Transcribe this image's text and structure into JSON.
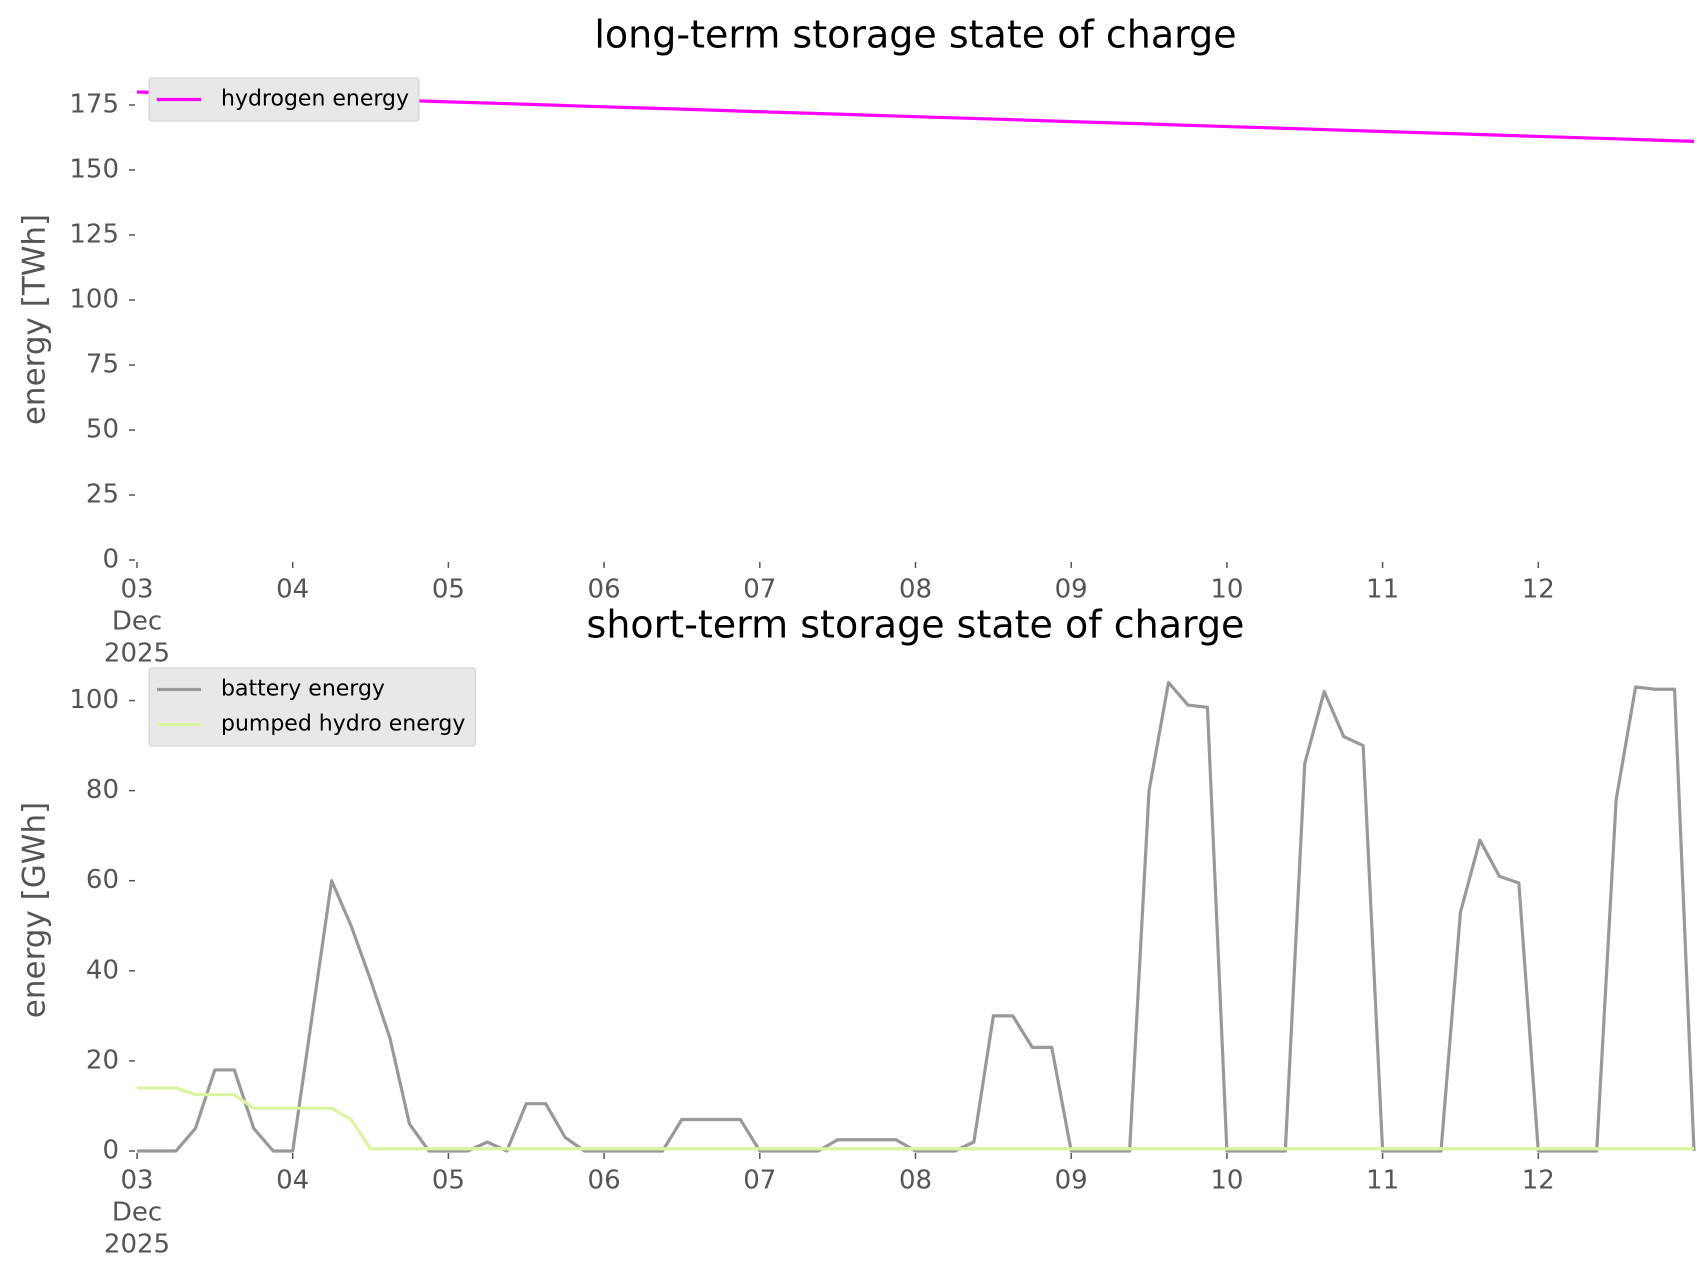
{
  "chart_data": [
    {
      "type": "line",
      "title": "long-term storage state of charge",
      "ylabel": "energy [TWh]",
      "x": [
        3,
        3.5,
        4,
        4.5,
        5,
        5.5,
        6,
        6.5,
        7,
        7.5,
        8,
        8.5,
        9,
        9.5,
        10,
        10.5,
        11,
        11.5,
        12,
        12.5,
        13
      ],
      "series": [
        {
          "name": "hydrogen energy",
          "color": "#ff00ff",
          "values": [
            180,
            179.1,
            178.1,
            177.2,
            176.2,
            175.3,
            174.3,
            173.4,
            172.4,
            171.5,
            170.5,
            169.6,
            168.6,
            167.7,
            166.7,
            165.8,
            164.8,
            163.9,
            162.9,
            162.0,
            161.0
          ]
        }
      ],
      "xlim": [
        3,
        13
      ],
      "ylim": [
        0,
        185
      ],
      "xticks": [
        {
          "value": 3,
          "label": [
            "03",
            "Dec",
            "2025"
          ]
        },
        {
          "value": 4,
          "label": "04"
        },
        {
          "value": 5,
          "label": "05"
        },
        {
          "value": 6,
          "label": "06"
        },
        {
          "value": 7,
          "label": "07"
        },
        {
          "value": 8,
          "label": "08"
        },
        {
          "value": 9,
          "label": "09"
        },
        {
          "value": 10,
          "label": "10"
        },
        {
          "value": 11,
          "label": "11"
        },
        {
          "value": 12,
          "label": "12"
        }
      ],
      "yticks": [
        0,
        25,
        50,
        75,
        100,
        125,
        150,
        175
      ],
      "legend": "upper left",
      "grid": false
    },
    {
      "type": "line",
      "title": "short-term storage state of charge",
      "ylabel": "energy [GWh]",
      "x": [
        3,
        3.125,
        3.25,
        3.375,
        3.5,
        3.625,
        3.75,
        3.875,
        4,
        4.125,
        4.25,
        4.375,
        4.5,
        4.625,
        4.75,
        4.875,
        5,
        5.125,
        5.25,
        5.375,
        5.5,
        5.625,
        5.75,
        5.875,
        6,
        6.125,
        6.25,
        6.375,
        6.5,
        6.625,
        6.75,
        6.875,
        7,
        7.125,
        7.25,
        7.375,
        7.5,
        7.625,
        7.75,
        7.875,
        8,
        8.125,
        8.25,
        8.375,
        8.5,
        8.625,
        8.75,
        8.875,
        9,
        9.125,
        9.25,
        9.375,
        9.5,
        9.625,
        9.75,
        9.875,
        10,
        10.125,
        10.25,
        10.375,
        10.5,
        10.625,
        10.75,
        10.875,
        11,
        11.125,
        11.25,
        11.375,
        11.5,
        11.625,
        11.75,
        11.875,
        12,
        12.125,
        12.25,
        12.375,
        12.5,
        12.625,
        12.75,
        12.875,
        13
      ],
      "series": [
        {
          "name": "battery energy",
          "color": "#999999",
          "values": [
            0,
            0,
            0,
            5,
            18,
            18,
            5,
            0,
            0,
            30,
            60,
            50,
            38,
            25,
            6,
            0,
            0,
            0,
            2,
            0,
            10.5,
            10.5,
            3,
            0,
            0,
            0,
            0,
            0,
            7,
            7,
            7,
            7,
            0,
            0,
            0,
            0,
            2.5,
            2.5,
            2.5,
            2.5,
            0,
            0,
            0,
            2,
            30,
            30,
            23,
            23,
            0,
            0,
            0,
            0,
            80,
            104,
            99,
            98.5,
            0,
            0,
            0,
            0,
            86,
            102,
            92,
            90,
            0,
            0,
            0,
            0,
            53,
            69,
            61,
            59.5,
            0,
            0,
            0,
            0,
            78,
            103,
            102.5,
            102.5,
            0
          ]
        },
        {
          "name": "pumped hydro energy",
          "color": "#d9f5a0",
          "values": [
            14,
            14,
            14,
            12.5,
            12.5,
            12.5,
            9.5,
            9.5,
            9.5,
            9.5,
            9.5,
            7,
            0.5,
            0.5,
            0.5,
            0.5,
            0.5,
            0.5,
            0.5,
            0.5,
            0.5,
            0.5,
            0.5,
            0.5,
            0.5,
            0.5,
            0.5,
            0.5,
            0.5,
            0.5,
            0.5,
            0.5,
            0.5,
            0.5,
            0.5,
            0.5,
            0.5,
            0.5,
            0.5,
            0.5,
            0.5,
            0.5,
            0.5,
            0.5,
            0.5,
            0.5,
            0.5,
            0.5,
            0.5,
            0.5,
            0.5,
            0.5,
            0.5,
            0.5,
            0.5,
            0.5,
            0.5,
            0.5,
            0.5,
            0.5,
            0.5,
            0.5,
            0.5,
            0.5,
            0.5,
            0.5,
            0.5,
            0.5,
            0.5,
            0.5,
            0.5,
            0.5,
            0.5,
            0.5,
            0.5,
            0.5,
            0.5,
            0.5,
            0.5,
            0.5,
            0.5
          ]
        }
      ],
      "xlim": [
        3,
        13
      ],
      "ylim": [
        0,
        107
      ],
      "xticks": [
        {
          "value": 3,
          "label": [
            "03",
            "Dec",
            "2025"
          ]
        },
        {
          "value": 4,
          "label": "04"
        },
        {
          "value": 5,
          "label": "05"
        },
        {
          "value": 6,
          "label": "06"
        },
        {
          "value": 7,
          "label": "07"
        },
        {
          "value": 8,
          "label": "08"
        },
        {
          "value": 9,
          "label": "09"
        },
        {
          "value": 10,
          "label": "10"
        },
        {
          "value": 11,
          "label": "11"
        },
        {
          "value": 12,
          "label": "12"
        }
      ],
      "yticks": [
        0,
        20,
        40,
        60,
        80,
        100
      ],
      "legend": "upper left",
      "grid": false
    }
  ]
}
